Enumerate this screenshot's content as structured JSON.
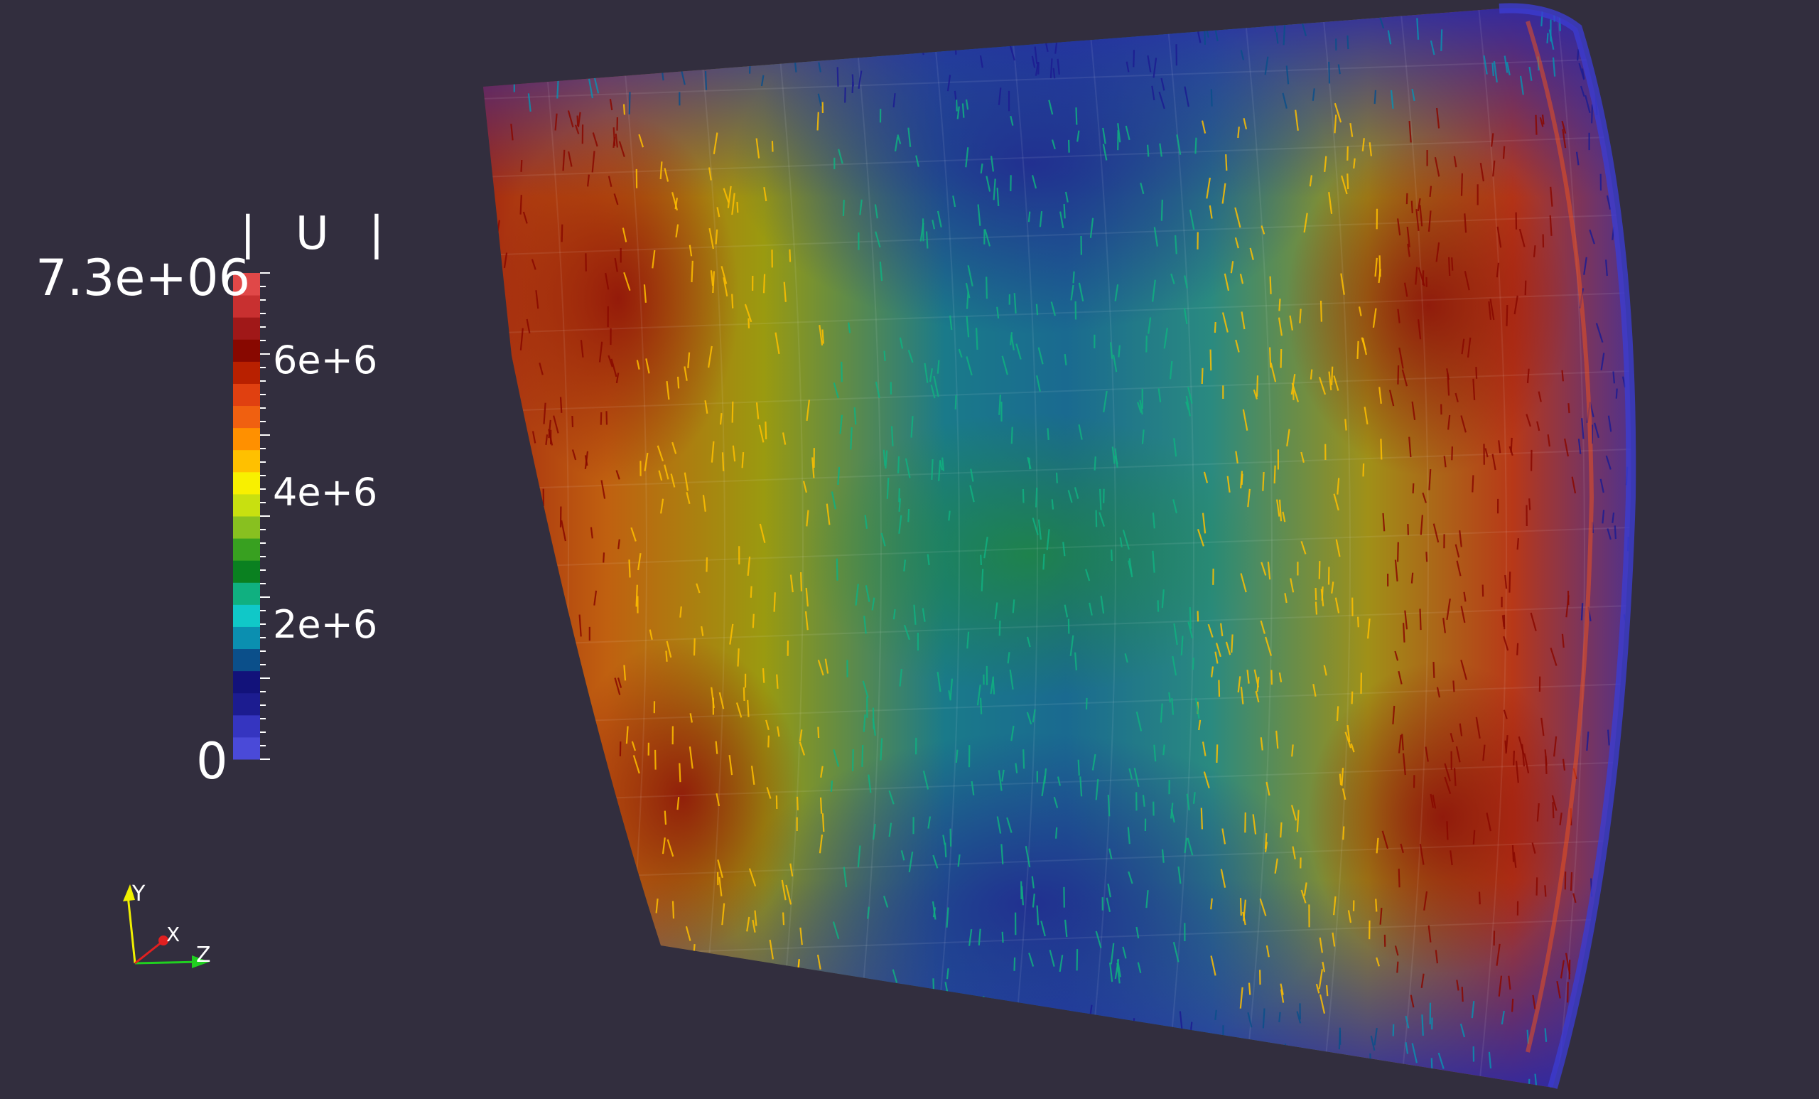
{
  "legend": {
    "title": "| U |",
    "max_label": "7.3e+06",
    "min_label": "0",
    "tick_labels": [
      "6e+6",
      "4e+6",
      "2e+6"
    ],
    "range": [
      0,
      7300000
    ],
    "colors": [
      "#4a4ad8",
      "#3535c0",
      "#1c1c90",
      "#12127a",
      "#0b4f8a",
      "#0b8fb0",
      "#10c8c8",
      "#10b080",
      "#0a8020",
      "#38a020",
      "#88c020",
      "#c8e010",
      "#f8f000",
      "#ffc000",
      "#ff9000",
      "#f06010",
      "#e04010",
      "#b82000",
      "#880800",
      "#a01818",
      "#c83030",
      "#e04848"
    ]
  },
  "axes": {
    "x": "X",
    "y": "Y",
    "z": "Z"
  },
  "colors": {
    "background": "#322e3e"
  }
}
